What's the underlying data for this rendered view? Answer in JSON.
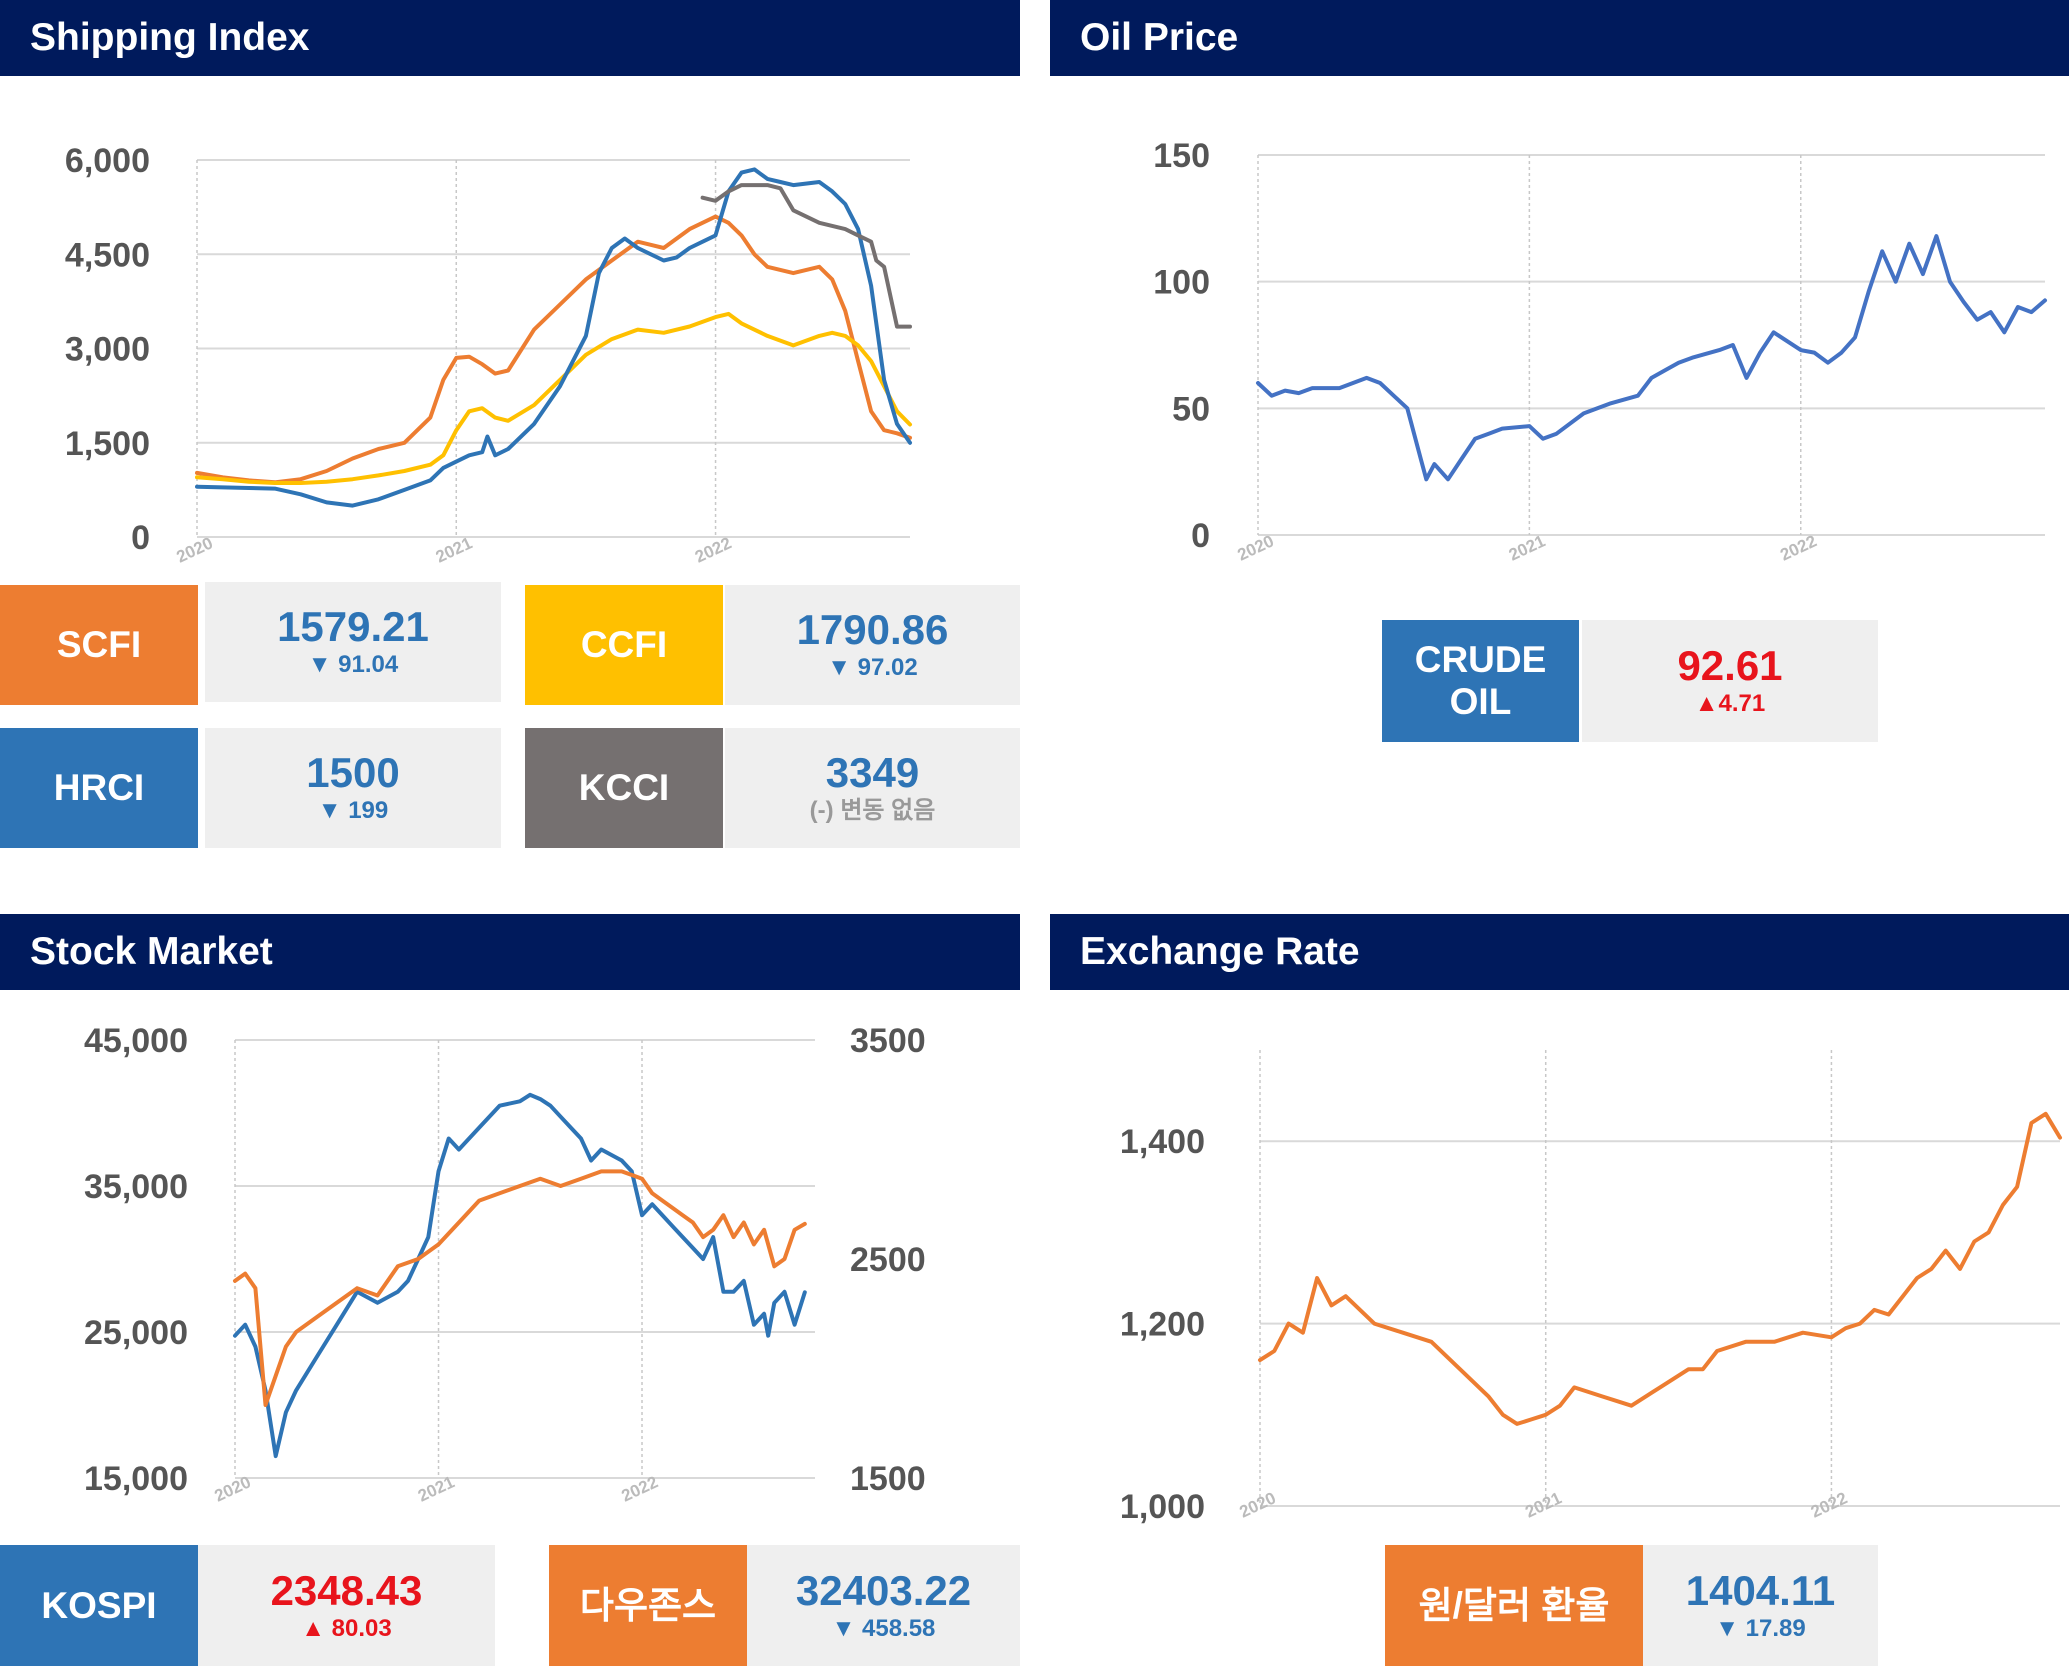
{
  "panels": {
    "shipping": {
      "title": "Shipping Index"
    },
    "oil": {
      "title": "Oil Price"
    },
    "stock": {
      "title": "Stock Market"
    },
    "exchange": {
      "title": "Exchange Rate"
    }
  },
  "colors": {
    "header": "#001a5c",
    "scfi": "#ed7d31",
    "ccfi": "#ffc000",
    "hrci": "#2e74b5",
    "kcci": "#757070",
    "crude": "#4472c4",
    "kospi": "#2e74b5",
    "dow": "#ed7d31",
    "fx": "#ed7d31",
    "up": "#e8141c",
    "down": "#2e74b5"
  },
  "tiles": {
    "scfi": {
      "label": "SCFI",
      "value": "1579.21",
      "change": "▼ 91.04"
    },
    "ccfi": {
      "label": "CCFI",
      "value": "1790.86",
      "change": "▼ 97.02"
    },
    "hrci": {
      "label": "HRCI",
      "value": "1500",
      "change": "▼ 199"
    },
    "kcci": {
      "label": "KCCI",
      "value": "3349",
      "change": "(-) 변동 없음"
    },
    "crude": {
      "label": "CRUDE OIL",
      "value": "92.61",
      "change": "▲4.71"
    },
    "kospi": {
      "label": "KOSPI",
      "value": "2348.43",
      "change": "▲ 80.03"
    },
    "dow": {
      "label": "다우존스",
      "value": "32403.22",
      "change": "▼ 458.58"
    },
    "fx": {
      "label": "원/달러 환율",
      "value": "1404.11",
      "change": "▼ 17.89"
    }
  },
  "chart_data": [
    {
      "type": "line",
      "title": "Shipping Index",
      "x_ticks": [
        "2020",
        "2021",
        "2022"
      ],
      "y_ticks": [
        "0",
        "1,500",
        "3,000",
        "4,500",
        "6,000"
      ],
      "ylim": [
        0,
        6000
      ],
      "xlim": [
        2020.0,
        2022.75
      ],
      "grid": true,
      "series": [
        {
          "name": "SCFI",
          "color": "#ed7d31",
          "x": [
            2020.0,
            2020.1,
            2020.2,
            2020.3,
            2020.4,
            2020.5,
            2020.6,
            2020.7,
            2020.8,
            2020.9,
            2020.95,
            2021.0,
            2021.05,
            2021.1,
            2021.15,
            2021.2,
            2021.3,
            2021.4,
            2021.5,
            2021.6,
            2021.7,
            2021.75,
            2021.8,
            2021.9,
            2022.0,
            2022.05,
            2022.1,
            2022.15,
            2022.2,
            2022.3,
            2022.4,
            2022.45,
            2022.5,
            2022.55,
            2022.6,
            2022.65,
            2022.7,
            2022.75
          ],
          "y": [
            1020,
            950,
            900,
            870,
            920,
            1050,
            1250,
            1400,
            1500,
            1900,
            2500,
            2850,
            2870,
            2750,
            2600,
            2650,
            3300,
            3700,
            4100,
            4400,
            4700,
            4650,
            4600,
            4900,
            5100,
            5000,
            4800,
            4500,
            4300,
            4200,
            4300,
            4100,
            3600,
            2800,
            2000,
            1700,
            1650,
            1579
          ]
        },
        {
          "name": "CCFI",
          "color": "#ffc000",
          "x": [
            2020.0,
            2020.1,
            2020.2,
            2020.3,
            2020.4,
            2020.5,
            2020.6,
            2020.7,
            2020.8,
            2020.9,
            2020.95,
            2021.0,
            2021.05,
            2021.1,
            2021.15,
            2021.2,
            2021.3,
            2021.4,
            2021.5,
            2021.6,
            2021.7,
            2021.8,
            2021.9,
            2022.0,
            2022.05,
            2022.1,
            2022.2,
            2022.3,
            2022.4,
            2022.45,
            2022.5,
            2022.55,
            2022.6,
            2022.65,
            2022.7,
            2022.75
          ],
          "y": [
            950,
            920,
            880,
            860,
            860,
            880,
            920,
            980,
            1050,
            1150,
            1300,
            1700,
            2000,
            2050,
            1900,
            1850,
            2100,
            2500,
            2900,
            3150,
            3300,
            3250,
            3350,
            3500,
            3550,
            3400,
            3200,
            3050,
            3200,
            3250,
            3200,
            3050,
            2800,
            2400,
            2000,
            1790
          ]
        },
        {
          "name": "HRCI",
          "color": "#2e74b5",
          "x": [
            2020.0,
            2020.1,
            2020.2,
            2020.3,
            2020.4,
            2020.5,
            2020.6,
            2020.7,
            2020.8,
            2020.9,
            2020.95,
            2021.0,
            2021.05,
            2021.1,
            2021.12,
            2021.15,
            2021.2,
            2021.3,
            2021.4,
            2021.5,
            2021.55,
            2021.6,
            2021.65,
            2021.7,
            2021.8,
            2021.85,
            2021.9,
            2021.95,
            2022.0,
            2022.05,
            2022.1,
            2022.15,
            2022.2,
            2022.25,
            2022.3,
            2022.4,
            2022.45,
            2022.5,
            2022.55,
            2022.6,
            2022.65,
            2022.7,
            2022.75
          ],
          "y": [
            800,
            790,
            780,
            770,
            680,
            550,
            500,
            600,
            750,
            900,
            1100,
            1200,
            1300,
            1350,
            1600,
            1300,
            1400,
            1800,
            2400,
            3200,
            4200,
            4600,
            4750,
            4600,
            4400,
            4450,
            4600,
            4700,
            4800,
            5500,
            5800,
            5850,
            5700,
            5650,
            5600,
            5650,
            5500,
            5300,
            4900,
            4000,
            2500,
            1800,
            1500
          ]
        },
        {
          "name": "KCCI",
          "color": "#757070",
          "x": [
            2021.95,
            2022.0,
            2022.05,
            2022.1,
            2022.2,
            2022.25,
            2022.3,
            2022.35,
            2022.4,
            2022.5,
            2022.55,
            2022.6,
            2022.62,
            2022.65,
            2022.7,
            2022.75
          ],
          "y": [
            5400,
            5350,
            5500,
            5600,
            5600,
            5550,
            5200,
            5100,
            5000,
            4900,
            4800,
            4700,
            4400,
            4300,
            3349,
            3349
          ]
        }
      ]
    },
    {
      "type": "line",
      "title": "Oil Price",
      "x_ticks": [
        "2020",
        "2021",
        "2022"
      ],
      "y_ticks": [
        "0",
        "50",
        "100",
        "150"
      ],
      "ylim": [
        0,
        150
      ],
      "xlim": [
        2020.0,
        2022.9
      ],
      "grid": true,
      "series": [
        {
          "name": "CRUDE OIL",
          "color": "#4472c4",
          "x": [
            2020.0,
            2020.05,
            2020.1,
            2020.15,
            2020.2,
            2020.3,
            2020.4,
            2020.45,
            2020.5,
            2020.55,
            2020.6,
            2020.62,
            2020.65,
            2020.7,
            2020.75,
            2020.8,
            2020.85,
            2020.9,
            2021.0,
            2021.05,
            2021.1,
            2021.2,
            2021.3,
            2021.4,
            2021.45,
            2021.5,
            2021.55,
            2021.6,
            2021.7,
            2021.75,
            2021.8,
            2021.85,
            2021.9,
            2022.0,
            2022.05,
            2022.1,
            2022.15,
            2022.2,
            2022.25,
            2022.3,
            2022.35,
            2022.4,
            2022.45,
            2022.5,
            2022.55,
            2022.6,
            2022.65,
            2022.7,
            2022.75,
            2022.8,
            2022.85,
            2022.9
          ],
          "y": [
            60,
            55,
            57,
            56,
            58,
            58,
            62,
            60,
            55,
            50,
            30,
            22,
            28,
            22,
            30,
            38,
            40,
            42,
            43,
            38,
            40,
            48,
            52,
            55,
            62,
            65,
            68,
            70,
            73,
            75,
            62,
            72,
            80,
            73,
            72,
            68,
            72,
            78,
            96,
            112,
            100,
            115,
            103,
            118,
            100,
            92,
            85,
            88,
            80,
            90,
            88,
            92.61
          ]
        }
      ]
    },
    {
      "type": "line",
      "title": "Stock Market",
      "x_ticks": [
        "2020",
        "2021",
        "2022"
      ],
      "y_ticks_left": [
        "15,000",
        "25,000",
        "35,000",
        "45,000"
      ],
      "y_ticks_right": [
        "1500",
        "2500",
        "3500"
      ],
      "ylim_left": [
        15000,
        45000
      ],
      "ylim_right": [
        1500,
        3500
      ],
      "xlim": [
        2020.0,
        2022.85
      ],
      "grid": true,
      "series": [
        {
          "name": "KOSPI",
          "axis": "right",
          "color": "#2e74b5",
          "x": [
            2020.0,
            2020.05,
            2020.1,
            2020.15,
            2020.2,
            2020.25,
            2020.3,
            2020.4,
            2020.5,
            2020.6,
            2020.7,
            2020.8,
            2020.85,
            2020.9,
            2020.95,
            2021.0,
            2021.05,
            2021.1,
            2021.2,
            2021.3,
            2021.4,
            2021.45,
            2021.5,
            2021.55,
            2021.6,
            2021.65,
            2021.7,
            2021.75,
            2021.8,
            2021.9,
            2021.95,
            2022.0,
            2022.05,
            2022.1,
            2022.15,
            2022.2,
            2022.25,
            2022.3,
            2022.35,
            2022.4,
            2022.45,
            2022.5,
            2022.55,
            2022.6,
            2022.62,
            2022.65,
            2022.7,
            2022.75,
            2022.8
          ],
          "y": [
            2150,
            2200,
            2100,
            1900,
            1600,
            1800,
            1900,
            2050,
            2200,
            2350,
            2300,
            2350,
            2400,
            2500,
            2600,
            2900,
            3050,
            3000,
            3100,
            3200,
            3220,
            3250,
            3230,
            3200,
            3150,
            3100,
            3050,
            2950,
            3000,
            2950,
            2900,
            2700,
            2750,
            2700,
            2650,
            2600,
            2550,
            2500,
            2600,
            2350,
            2350,
            2400,
            2200,
            2250,
            2150,
            2300,
            2350,
            2200,
            2348
          ]
        },
        {
          "name": "다우존스",
          "axis": "left",
          "color": "#ed7d31",
          "x": [
            2020.0,
            2020.05,
            2020.1,
            2020.15,
            2020.2,
            2020.25,
            2020.3,
            2020.4,
            2020.5,
            2020.6,
            2020.7,
            2020.8,
            2020.9,
            2021.0,
            2021.1,
            2021.2,
            2021.3,
            2021.4,
            2021.5,
            2021.6,
            2021.7,
            2021.8,
            2021.9,
            2022.0,
            2022.05,
            2022.1,
            2022.15,
            2022.2,
            2022.25,
            2022.3,
            2022.35,
            2022.4,
            2022.45,
            2022.5,
            2022.55,
            2022.6,
            2022.65,
            2022.7,
            2022.75,
            2022.8
          ],
          "y": [
            28500,
            29000,
            28000,
            20000,
            22000,
            24000,
            25000,
            26000,
            27000,
            28000,
            27500,
            29500,
            30000,
            31000,
            32500,
            34000,
            34500,
            35000,
            35500,
            35000,
            35500,
            36000,
            36000,
            35500,
            34500,
            34000,
            33500,
            33000,
            32500,
            31500,
            32000,
            33000,
            31500,
            32500,
            31000,
            32000,
            29500,
            30000,
            32000,
            32403
          ]
        }
      ]
    },
    {
      "type": "line",
      "title": "Exchange Rate",
      "x_ticks": [
        "2020",
        "2021",
        "2022"
      ],
      "y_ticks": [
        "1,000",
        "1,200",
        "1,400"
      ],
      "ylim": [
        1000,
        1500
      ],
      "xlim": [
        2020.0,
        2022.8
      ],
      "grid": true,
      "series": [
        {
          "name": "원/달러 환율",
          "color": "#ed7d31",
          "x": [
            2020.0,
            2020.05,
            2020.1,
            2020.15,
            2020.2,
            2020.25,
            2020.3,
            2020.4,
            2020.5,
            2020.6,
            2020.7,
            2020.8,
            2020.85,
            2020.9,
            2020.95,
            2021.0,
            2021.05,
            2021.1,
            2021.2,
            2021.3,
            2021.4,
            2021.5,
            2021.55,
            2021.6,
            2021.7,
            2021.8,
            2021.9,
            2022.0,
            2022.05,
            2022.1,
            2022.15,
            2022.2,
            2022.3,
            2022.35,
            2022.4,
            2022.45,
            2022.5,
            2022.55,
            2022.6,
            2022.65,
            2022.7,
            2022.75,
            2022.8
          ],
          "y": [
            1160,
            1170,
            1200,
            1190,
            1250,
            1220,
            1230,
            1200,
            1190,
            1180,
            1150,
            1120,
            1100,
            1090,
            1095,
            1100,
            1110,
            1130,
            1120,
            1110,
            1130,
            1150,
            1150,
            1170,
            1180,
            1180,
            1190,
            1185,
            1195,
            1200,
            1215,
            1210,
            1250,
            1260,
            1280,
            1260,
            1290,
            1300,
            1330,
            1350,
            1420,
            1430,
            1404
          ]
        }
      ]
    }
  ]
}
